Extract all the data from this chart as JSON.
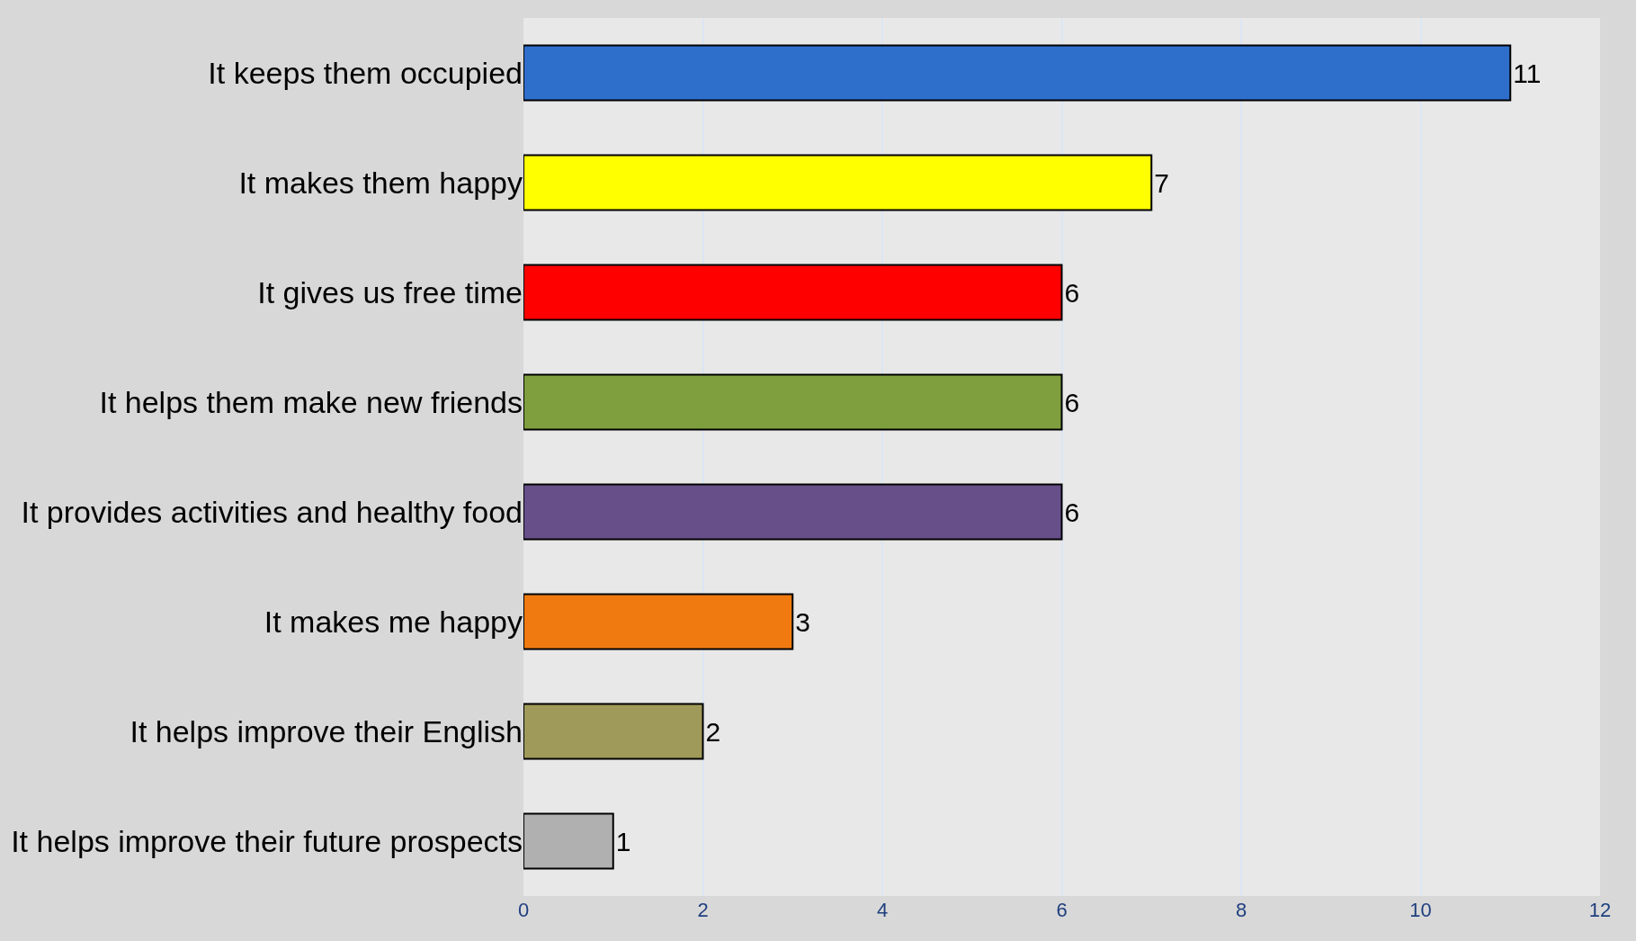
{
  "chart_data": {
    "type": "bar",
    "orientation": "horizontal",
    "categories": [
      "It keeps them occupied",
      "It makes them happy",
      "It gives us free time",
      "It helps them make new friends",
      "It provides activities and healthy food",
      "It makes me happy",
      "It helps improve their English",
      "It helps improve their future prospects"
    ],
    "values": [
      11,
      7,
      6,
      6,
      6,
      3,
      2,
      1
    ],
    "colors": [
      "#2f6fcc",
      "#ffff00",
      "#ff0000",
      "#7f9f3f",
      "#674f8a",
      "#f07a10",
      "#a09a5a",
      "#b0b0b0"
    ],
    "xlim": [
      0,
      12
    ],
    "xticks": [
      0,
      2,
      4,
      6,
      8,
      10,
      12
    ],
    "grid": "x",
    "data_labels": true
  }
}
